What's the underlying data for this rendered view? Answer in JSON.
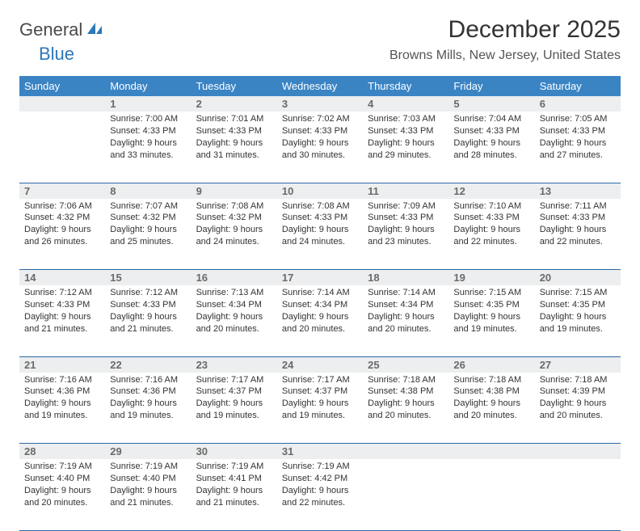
{
  "logo": {
    "word1": "General",
    "word2": "Blue"
  },
  "title": "December 2025",
  "location": "Browns Mills, New Jersey, United States",
  "header_bg": "#3b84c4",
  "rule_color": "#2d6aa3",
  "daynum_bg": "#eceeef",
  "weekdays": [
    "Sunday",
    "Monday",
    "Tuesday",
    "Wednesday",
    "Thursday",
    "Friday",
    "Saturday"
  ],
  "weeks": [
    [
      null,
      {
        "n": "1",
        "sr": "7:00 AM",
        "ss": "4:33 PM",
        "dl": "9 hours and 33 minutes."
      },
      {
        "n": "2",
        "sr": "7:01 AM",
        "ss": "4:33 PM",
        "dl": "9 hours and 31 minutes."
      },
      {
        "n": "3",
        "sr": "7:02 AM",
        "ss": "4:33 PM",
        "dl": "9 hours and 30 minutes."
      },
      {
        "n": "4",
        "sr": "7:03 AM",
        "ss": "4:33 PM",
        "dl": "9 hours and 29 minutes."
      },
      {
        "n": "5",
        "sr": "7:04 AM",
        "ss": "4:33 PM",
        "dl": "9 hours and 28 minutes."
      },
      {
        "n": "6",
        "sr": "7:05 AM",
        "ss": "4:33 PM",
        "dl": "9 hours and 27 minutes."
      }
    ],
    [
      {
        "n": "7",
        "sr": "7:06 AM",
        "ss": "4:32 PM",
        "dl": "9 hours and 26 minutes."
      },
      {
        "n": "8",
        "sr": "7:07 AM",
        "ss": "4:32 PM",
        "dl": "9 hours and 25 minutes."
      },
      {
        "n": "9",
        "sr": "7:08 AM",
        "ss": "4:32 PM",
        "dl": "9 hours and 24 minutes."
      },
      {
        "n": "10",
        "sr": "7:08 AM",
        "ss": "4:33 PM",
        "dl": "9 hours and 24 minutes."
      },
      {
        "n": "11",
        "sr": "7:09 AM",
        "ss": "4:33 PM",
        "dl": "9 hours and 23 minutes."
      },
      {
        "n": "12",
        "sr": "7:10 AM",
        "ss": "4:33 PM",
        "dl": "9 hours and 22 minutes."
      },
      {
        "n": "13",
        "sr": "7:11 AM",
        "ss": "4:33 PM",
        "dl": "9 hours and 22 minutes."
      }
    ],
    [
      {
        "n": "14",
        "sr": "7:12 AM",
        "ss": "4:33 PM",
        "dl": "9 hours and 21 minutes."
      },
      {
        "n": "15",
        "sr": "7:12 AM",
        "ss": "4:33 PM",
        "dl": "9 hours and 21 minutes."
      },
      {
        "n": "16",
        "sr": "7:13 AM",
        "ss": "4:34 PM",
        "dl": "9 hours and 20 minutes."
      },
      {
        "n": "17",
        "sr": "7:14 AM",
        "ss": "4:34 PM",
        "dl": "9 hours and 20 minutes."
      },
      {
        "n": "18",
        "sr": "7:14 AM",
        "ss": "4:34 PM",
        "dl": "9 hours and 20 minutes."
      },
      {
        "n": "19",
        "sr": "7:15 AM",
        "ss": "4:35 PM",
        "dl": "9 hours and 19 minutes."
      },
      {
        "n": "20",
        "sr": "7:15 AM",
        "ss": "4:35 PM",
        "dl": "9 hours and 19 minutes."
      }
    ],
    [
      {
        "n": "21",
        "sr": "7:16 AM",
        "ss": "4:36 PM",
        "dl": "9 hours and 19 minutes."
      },
      {
        "n": "22",
        "sr": "7:16 AM",
        "ss": "4:36 PM",
        "dl": "9 hours and 19 minutes."
      },
      {
        "n": "23",
        "sr": "7:17 AM",
        "ss": "4:37 PM",
        "dl": "9 hours and 19 minutes."
      },
      {
        "n": "24",
        "sr": "7:17 AM",
        "ss": "4:37 PM",
        "dl": "9 hours and 19 minutes."
      },
      {
        "n": "25",
        "sr": "7:18 AM",
        "ss": "4:38 PM",
        "dl": "9 hours and 20 minutes."
      },
      {
        "n": "26",
        "sr": "7:18 AM",
        "ss": "4:38 PM",
        "dl": "9 hours and 20 minutes."
      },
      {
        "n": "27",
        "sr": "7:18 AM",
        "ss": "4:39 PM",
        "dl": "9 hours and 20 minutes."
      }
    ],
    [
      {
        "n": "28",
        "sr": "7:19 AM",
        "ss": "4:40 PM",
        "dl": "9 hours and 20 minutes."
      },
      {
        "n": "29",
        "sr": "7:19 AM",
        "ss": "4:40 PM",
        "dl": "9 hours and 21 minutes."
      },
      {
        "n": "30",
        "sr": "7:19 AM",
        "ss": "4:41 PM",
        "dl": "9 hours and 21 minutes."
      },
      {
        "n": "31",
        "sr": "7:19 AM",
        "ss": "4:42 PM",
        "dl": "9 hours and 22 minutes."
      },
      null,
      null,
      null
    ]
  ],
  "labels": {
    "sunrise": "Sunrise:",
    "sunset": "Sunset:",
    "daylight": "Daylight:"
  }
}
